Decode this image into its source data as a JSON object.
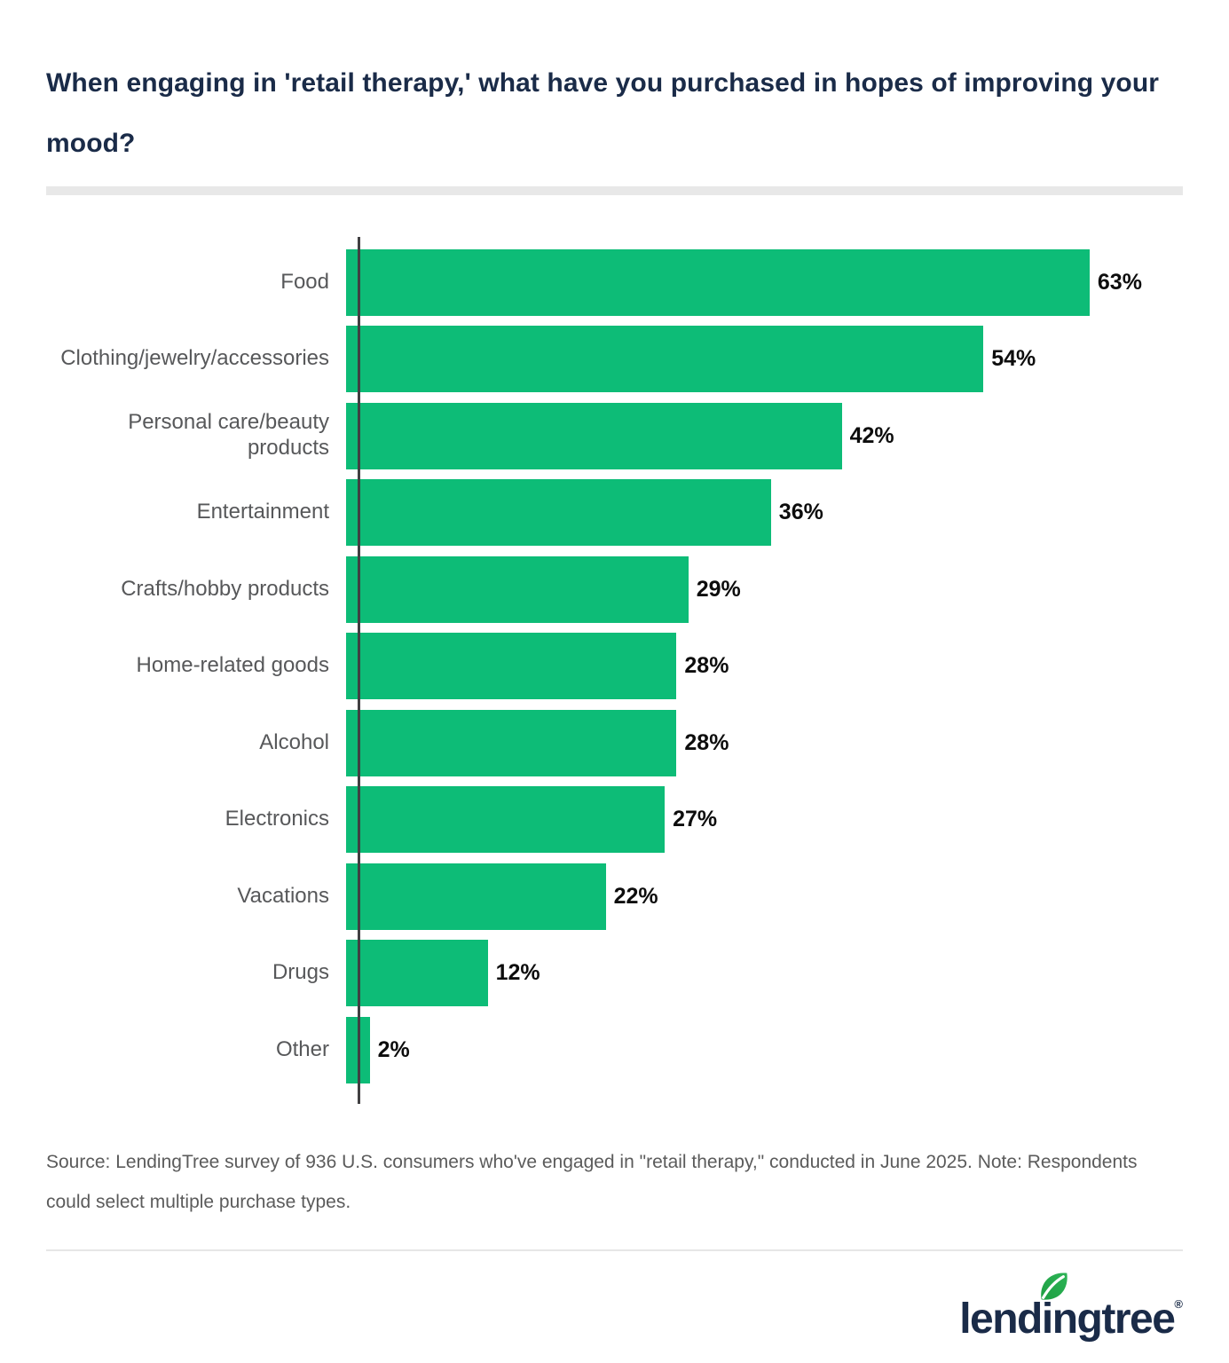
{
  "header": {
    "title": "When engaging in 'retail therapy,' what have you purchased in hopes of improving your mood?"
  },
  "chart_data": {
    "type": "bar",
    "orientation": "horizontal",
    "title": "When engaging in 'retail therapy,' what have you purchased in hopes of improving your mood?",
    "categories": [
      "Food",
      "Clothing/jewelry/accessories",
      "Personal care/beauty products",
      "Entertainment",
      "Crafts/hobby products",
      "Home-related goods",
      "Alcohol",
      "Electronics",
      "Vacations",
      "Drugs",
      "Other"
    ],
    "values": [
      63,
      54,
      42,
      36,
      29,
      28,
      28,
      27,
      22,
      12,
      2
    ],
    "value_labels": [
      "63%",
      "54%",
      "42%",
      "36%",
      "29%",
      "28%",
      "28%",
      "27%",
      "22%",
      "12%",
      "2%"
    ],
    "xlabel": "",
    "ylabel": "",
    "xlim": [
      0,
      70
    ],
    "grid": false,
    "legend": false,
    "bar_color": "#0dbc77",
    "axis_color": "#414042",
    "value_label_color": "#0d0d0d",
    "category_label_color": "#57585a"
  },
  "source": {
    "text": "Source: LendingTree survey of 936 U.S. consumers who've engaged in \"retail therapy,\" conducted in June 2025. Note: Respondents could select multiple purchase types."
  },
  "footer": {
    "logo_text": "lendingtree",
    "reg_mark": "®"
  },
  "colors": {
    "title_navy": "#1a2b48",
    "bar_green": "#0dbc77",
    "leaf_green_light": "#2db457",
    "leaf_green_dark": "#1d9e41",
    "divider_gray": "#e8e8e8"
  }
}
